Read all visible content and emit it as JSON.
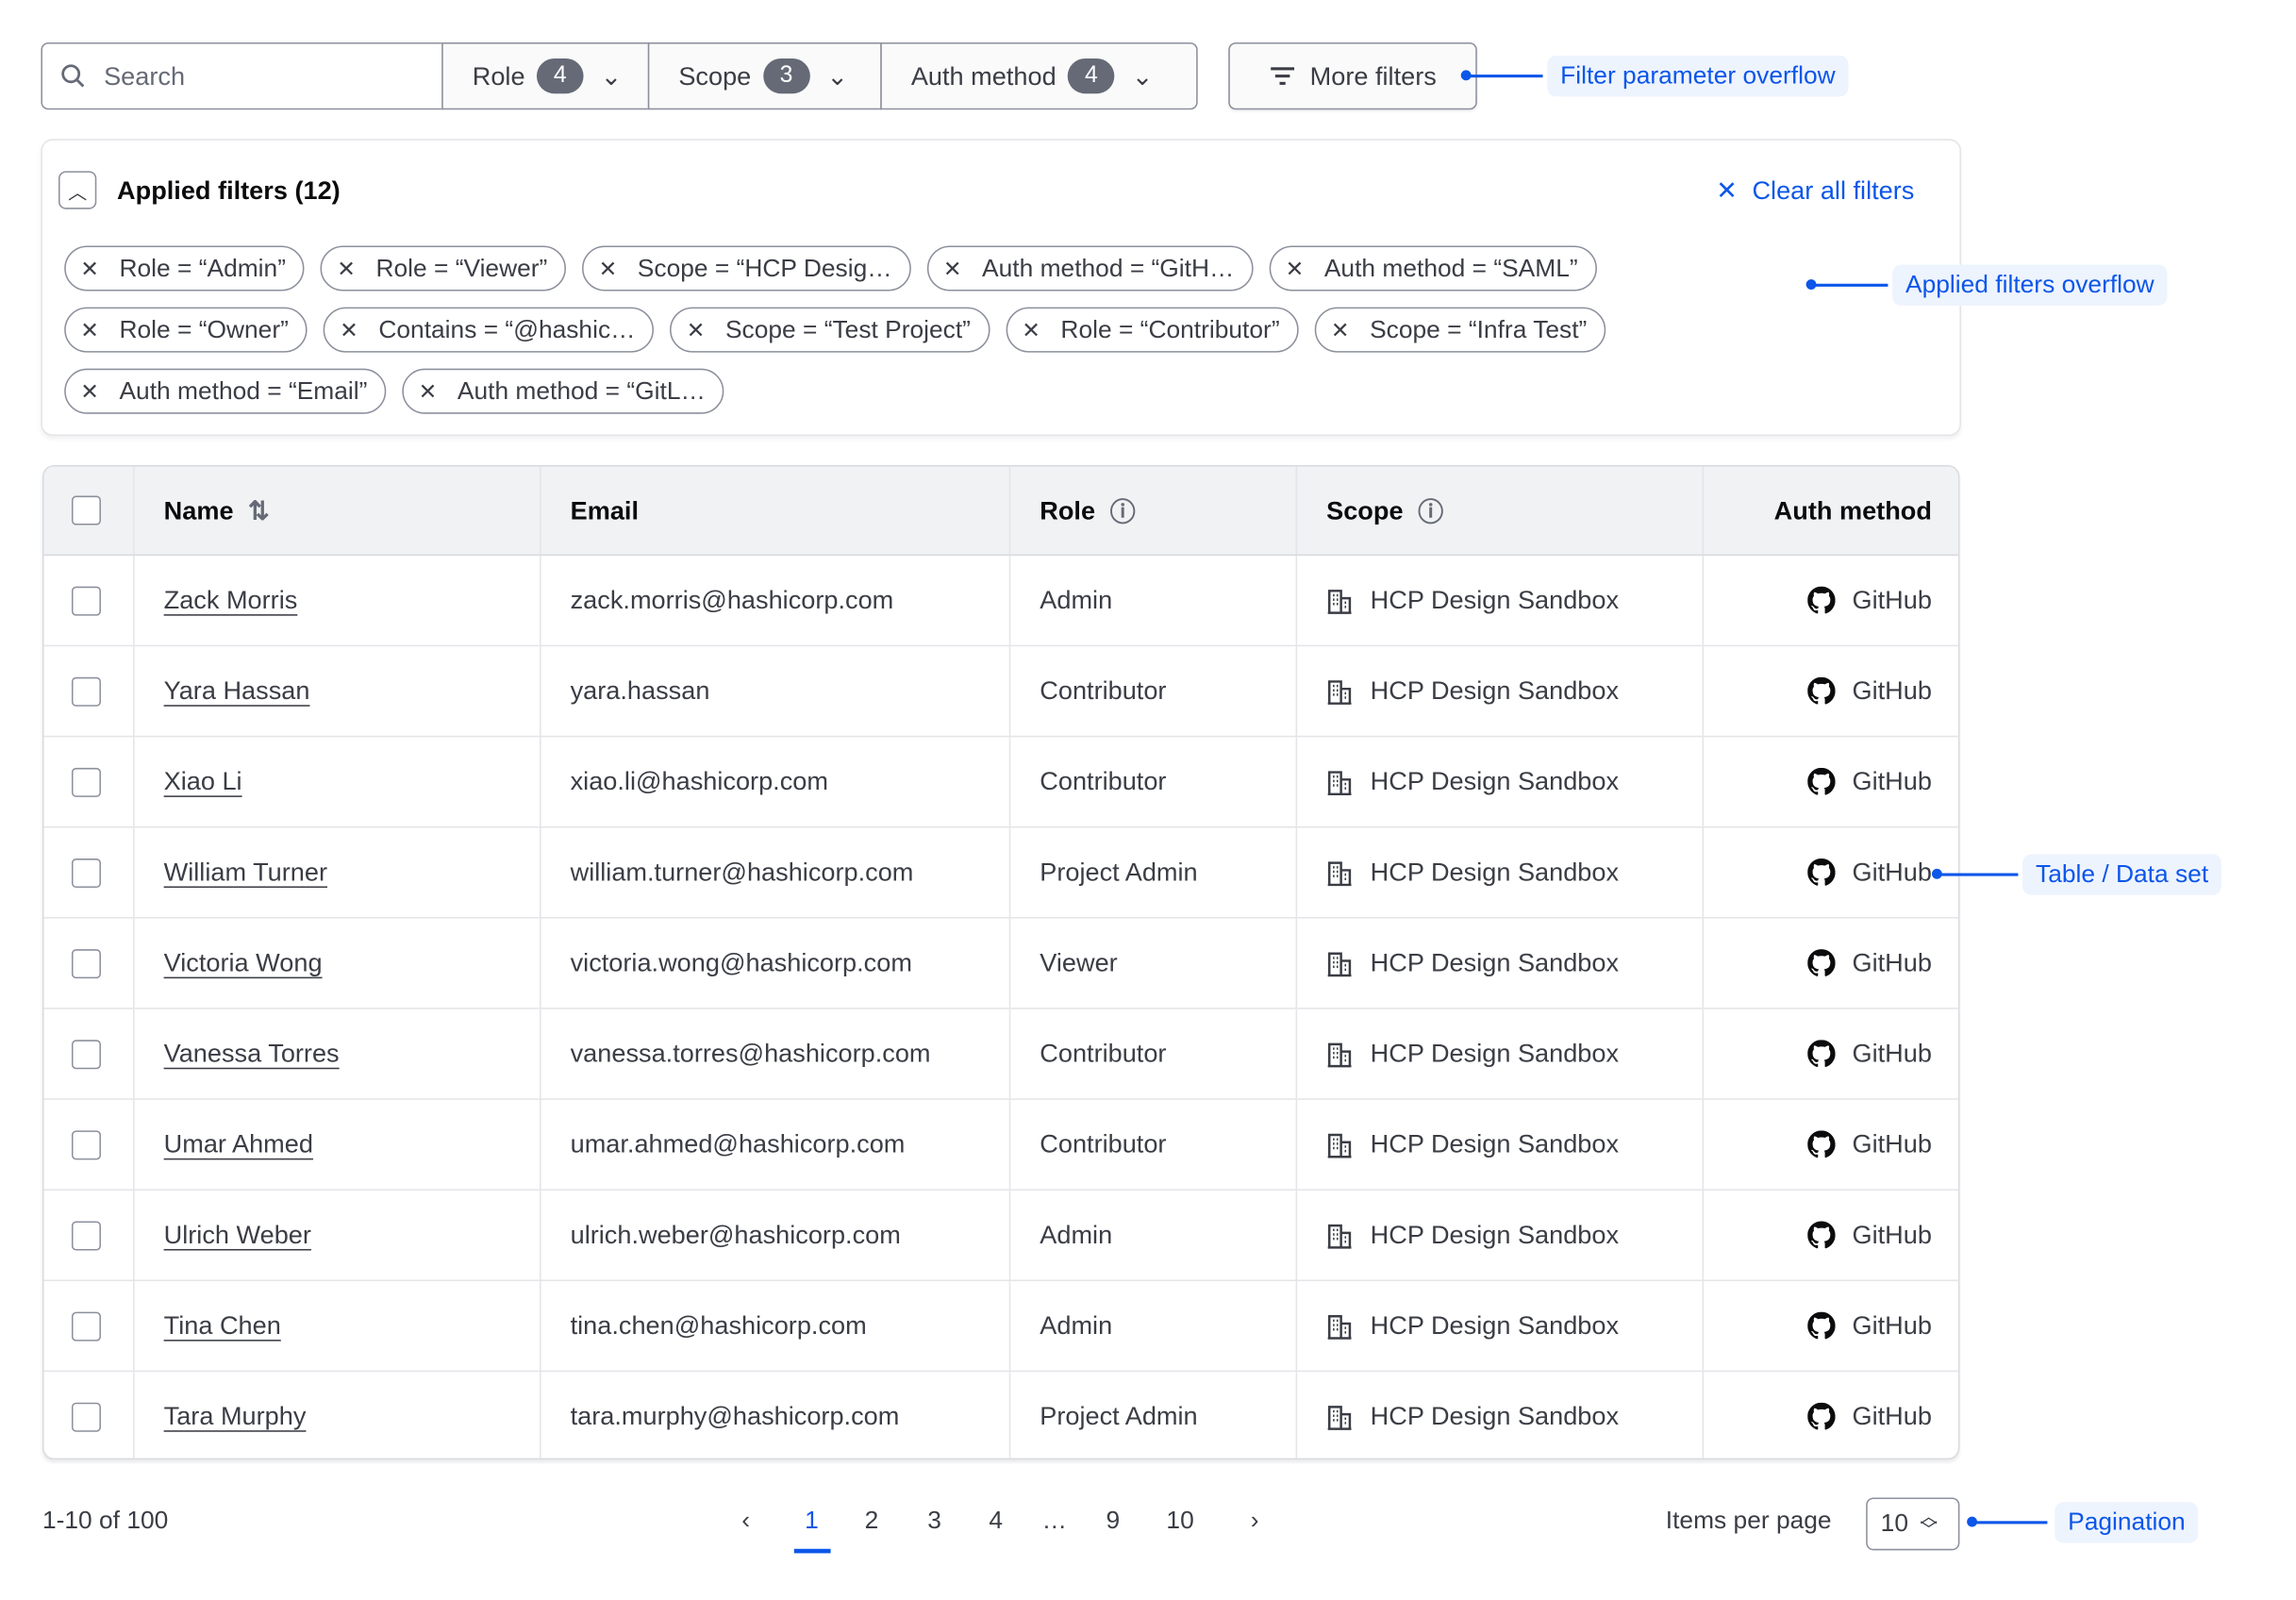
{
  "filter_bar": {
    "search_placeholder": "Search",
    "dropdowns": [
      {
        "label": "Role",
        "count": "4"
      },
      {
        "label": "Scope",
        "count": "3"
      },
      {
        "label": "Auth method",
        "count": "4"
      }
    ],
    "more_filters": "More filters"
  },
  "applied": {
    "title": "Applied filters (12)",
    "clear_all": "Clear all filters",
    "chips": [
      "Role = “Admin”",
      "Role = “Viewer”",
      "Scope = “HCP Desig…",
      "Auth method = “GitH…",
      "Auth method = “SAML”",
      "Role = “Owner”",
      "Contains = “@hashic…",
      "Scope = “Test Project”",
      "Role = “Contributor”",
      "Scope = “Infra Test”",
      "Auth method = “Email”",
      "Auth method = “GitL…"
    ]
  },
  "table": {
    "headers": {
      "name": "Name",
      "email": "Email",
      "role": "Role",
      "scope": "Scope",
      "auth": "Auth method"
    },
    "rows": [
      {
        "name": "Zack Morris",
        "email": "zack.morris@hashicorp.com",
        "role": "Admin",
        "scope": "HCP Design Sandbox",
        "auth": "GitHub"
      },
      {
        "name": "Yara Hassan",
        "email": "yara.hassan",
        "role": "Contributor",
        "scope": "HCP Design Sandbox",
        "auth": "GitHub"
      },
      {
        "name": "Xiao Li",
        "email": "xiao.li@hashicorp.com",
        "role": "Contributor",
        "scope": "HCP Design Sandbox",
        "auth": "GitHub"
      },
      {
        "name": "William Turner",
        "email": "william.turner@hashicorp.com",
        "role": "Project Admin",
        "scope": "HCP Design Sandbox",
        "auth": "GitHub"
      },
      {
        "name": "Victoria Wong",
        "email": "victoria.wong@hashicorp.com",
        "role": "Viewer",
        "scope": "HCP Design Sandbox",
        "auth": "GitHub"
      },
      {
        "name": "Vanessa Torres",
        "email": "vanessa.torres@hashicorp.com",
        "role": "Contributor",
        "scope": "HCP Design Sandbox",
        "auth": "GitHub"
      },
      {
        "name": "Umar Ahmed",
        "email": "umar.ahmed@hashicorp.com",
        "role": "Contributor",
        "scope": "HCP Design Sandbox",
        "auth": "GitHub"
      },
      {
        "name": "Ulrich Weber",
        "email": "ulrich.weber@hashicorp.com",
        "role": "Admin",
        "scope": "HCP Design Sandbox",
        "auth": "GitHub"
      },
      {
        "name": "Tina Chen",
        "email": "tina.chen@hashicorp.com",
        "role": "Admin",
        "scope": "HCP Design Sandbox",
        "auth": "GitHub"
      },
      {
        "name": "Tara Murphy",
        "email": "tara.murphy@hashicorp.com",
        "role": "Project Admin",
        "scope": "HCP Design Sandbox",
        "auth": "GitHub"
      }
    ]
  },
  "pagination": {
    "summary": "1-10 of 100",
    "pages": [
      "1",
      "2",
      "3",
      "4",
      "…",
      "9",
      "10"
    ],
    "current": "1",
    "items_per_page_label": "Items per page",
    "items_per_page": "10"
  },
  "annotations": {
    "filter_overflow": "Filter parameter overflow",
    "applied_overflow": "Applied filters overflow",
    "table": "Table / Data set",
    "pagination": "Pagination"
  },
  "colors": {
    "accent": "#0c56e9",
    "annotation_bg": "#eef4fe",
    "badge": "#656a76",
    "header_bg": "#f1f2f3"
  }
}
